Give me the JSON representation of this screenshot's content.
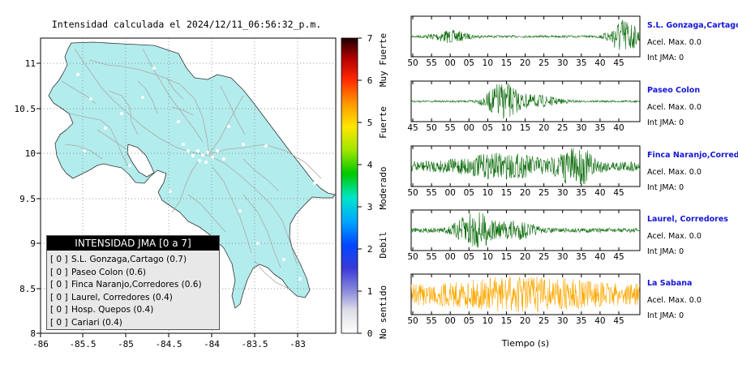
{
  "colors": {
    "map_fill": "#b3ecec",
    "map_border": "#333333",
    "roads": "#aaaaaa",
    "station_dot": "#ffffff",
    "trace_green": "#0b6b0b",
    "trace_orange": "#ffa800",
    "station_name": "#1515d6"
  },
  "map": {
    "title": "Intensidad calculada el 2024/12/11_06:56:32_p.m.",
    "x_ticks": [
      "-86",
      "-85.5",
      "-85",
      "-84.5",
      "-84",
      "-83.5",
      "-83"
    ],
    "y_ticks": [
      "11",
      "10.5",
      "10",
      "9.5",
      "9",
      "8.5",
      "8"
    ]
  },
  "colorbar": {
    "ticks": [
      "0",
      "1",
      "2",
      "3",
      "4",
      "5",
      "6",
      "7"
    ],
    "categories": [
      "No sentido",
      "Debil",
      "Moderado",
      "Fuerte",
      "Muy Fuerte"
    ]
  },
  "legend": {
    "title": "INTENSIDAD JMA [0 a 7]",
    "items": [
      {
        "bracket": "[ 0 ]",
        "label": "S.L. Gonzaga,Cartago (0.7)"
      },
      {
        "bracket": "[ 0 ]",
        "label": "Paseo Colon (0.6)"
      },
      {
        "bracket": "[ 0 ]",
        "label": "Finca Naranjo,Corredores (0.6)"
      },
      {
        "bracket": "[ 0 ]",
        "label": "Laurel, Corredores (0.4)"
      },
      {
        "bracket": "[ 0 ]",
        "label": "Hosp. Quepos (0.4)"
      },
      {
        "bracket": "[ 0 ]",
        "label": "Cariari (0.4)"
      }
    ]
  },
  "chart_data": [
    {
      "type": "map",
      "title": "Intensidad calculada el 2024/12/11_06:56:32_p.m.",
      "xlim": [
        -86,
        -82.6
      ],
      "ylim": [
        8,
        11.3
      ],
      "stations": [
        {
          "name": "S.L. Gonzaga,Cartago",
          "intensity": 0.7,
          "jma": 0
        },
        {
          "name": "Paseo Colon",
          "intensity": 0.6,
          "jma": 0
        },
        {
          "name": "Finca Naranjo,Corredores",
          "intensity": 0.6,
          "jma": 0
        },
        {
          "name": "Laurel, Corredores",
          "intensity": 0.4,
          "jma": 0
        },
        {
          "name": "Hosp. Quepos",
          "intensity": 0.4,
          "jma": 0
        },
        {
          "name": "Cariari",
          "intensity": 0.4,
          "jma": 0
        }
      ]
    },
    {
      "type": "line",
      "xlabel": "Tiempo (s)",
      "series": [
        {
          "name": "S.L. Gonzaga,Cartago",
          "accel_label": "Acel. Max. 0.0",
          "jma_label": "Int JMA: 0",
          "tick_labels": [
            "50",
            "55",
            "00",
            "05",
            "10",
            "15",
            "20",
            "25",
            "30",
            "35",
            "40",
            "45"
          ],
          "bursts": [
            {
              "at": 0.17,
              "amp": 0.3,
              "width": 0.08
            },
            {
              "at": 0.93,
              "amp": 1.0,
              "width": 0.06
            }
          ],
          "noise": 0.06
        },
        {
          "name": "Paseo Colon",
          "accel_label": "Acel. Max. 0.0",
          "jma_label": "Int JMA: 0",
          "tick_labels": [
            "45",
            "50",
            "55",
            "00",
            "05",
            "10",
            "15",
            "20",
            "25",
            "30",
            "35",
            "40"
          ],
          "bursts": [
            {
              "at": 0.4,
              "amp": 1.0,
              "width": 0.07
            },
            {
              "at": 0.55,
              "amp": 0.3,
              "width": 0.1
            }
          ],
          "noise": 0.05
        },
        {
          "name": "Finca Naranjo,Corredores",
          "accel_label": "Acel. Max. 0.0",
          "jma_label": "Int JMA: 0",
          "tick_labels": [
            "50",
            "55",
            "00",
            "05",
            "10",
            "15",
            "20",
            "25",
            "30",
            "35",
            "40",
            "45"
          ],
          "bursts": [
            {
              "at": 0.4,
              "amp": 0.45,
              "width": 0.2
            },
            {
              "at": 0.72,
              "amp": 0.95,
              "width": 0.07
            }
          ],
          "noise": 0.28
        },
        {
          "name": "Laurel, Corredores",
          "accel_label": "Acel. Max. 0.0",
          "jma_label": "Int JMA: 0",
          "tick_labels": [
            "50",
            "55",
            "00",
            "05",
            "10",
            "15",
            "20",
            "25",
            "30",
            "35",
            "40",
            "45"
          ],
          "bursts": [
            {
              "at": 0.28,
              "amp": 1.0,
              "width": 0.08
            },
            {
              "at": 0.46,
              "amp": 0.45,
              "width": 0.08
            }
          ],
          "noise": 0.12
        },
        {
          "name": "La Sabana",
          "accel_label": "Acel. Max. 0.0",
          "jma_label": "Int JMA: 0",
          "tick_labels": [
            "50",
            "55",
            "00",
            "05",
            "10",
            "15",
            "20",
            "25",
            "30",
            "35",
            "40",
            "45"
          ],
          "bursts": [
            {
              "at": 0.5,
              "amp": 0.45,
              "width": 0.3
            }
          ],
          "noise": 0.55
        }
      ]
    }
  ]
}
